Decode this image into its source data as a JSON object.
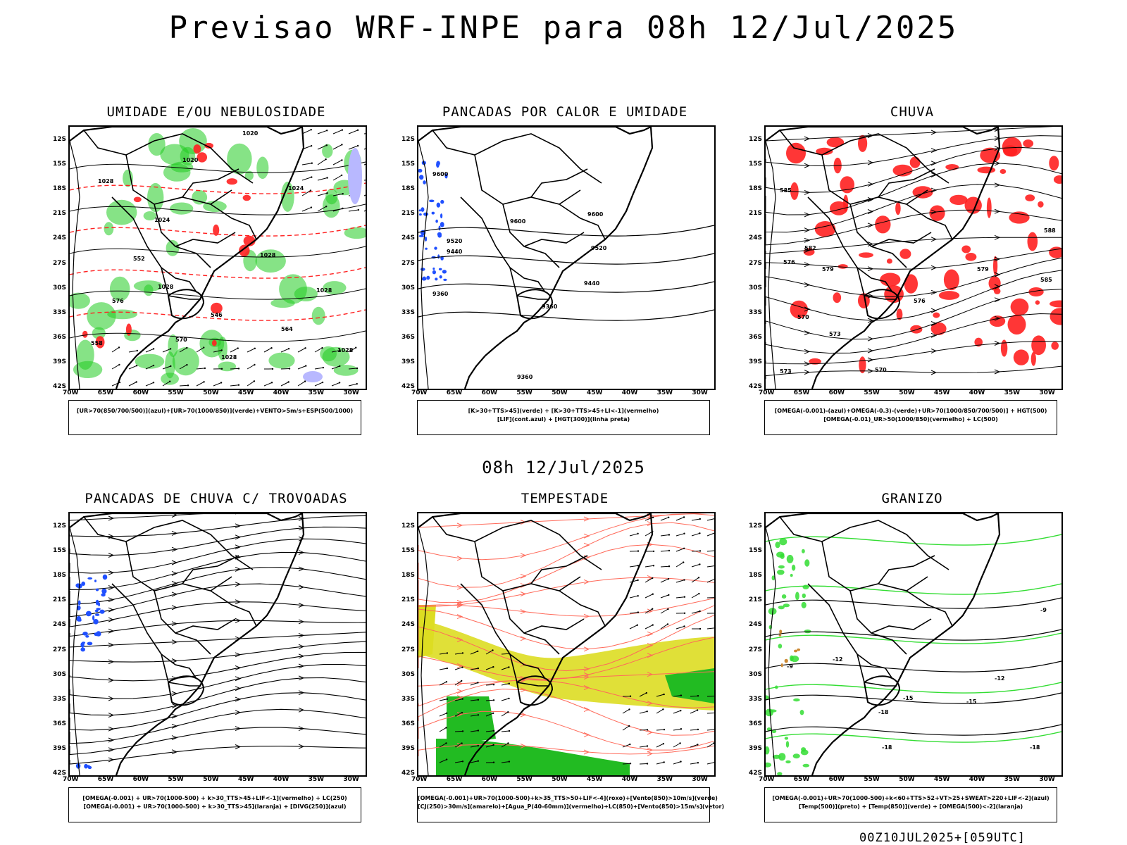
{
  "header": {
    "title": "Previsao WRF-INPE  para 08h 12/Jul/2025",
    "middle_title": "08h 12/Jul/2025",
    "footer_stamp": "00Z10JUL2025+[059UTC]"
  },
  "axes": {
    "lat_labels": [
      "12S",
      "15S",
      "18S",
      "21S",
      "24S",
      "27S",
      "30S",
      "33S",
      "36S",
      "39S",
      "42S"
    ],
    "lon_labels": [
      "70W",
      "65W",
      "60W",
      "55W",
      "50W",
      "45W",
      "40W",
      "35W",
      "30W"
    ]
  },
  "panels": [
    {
      "id": "umidade",
      "title": "UMIDADE E/OU NEBULOSIDADE",
      "legend": [
        "[UR>70(850/700/500)](azul)+[UR>70(1000/850)](verde)+VENTO>5m/s+ESP(500/1000)"
      ],
      "contour_labels": [
        "1020",
        "1020",
        "1024",
        "1028",
        "1024",
        "1028",
        "1028",
        "1028",
        "1028",
        "1028",
        "570",
        "576",
        "558",
        "564",
        "552",
        "546"
      ]
    },
    {
      "id": "pancadas-calor",
      "title": "PANCADAS POR CALOR E UMIDADE",
      "legend": [
        "[K>30+TTS>45](verde) + [K>30+TTS>45+LI<-1](vermelho)",
        "[LIF](cont.azul) + [HGT(300)](linha preta)"
      ],
      "contour_labels": [
        "9600",
        "9600",
        "9600",
        "9520",
        "9520",
        "9440",
        "9440",
        "9360",
        "9360",
        "9360"
      ]
    },
    {
      "id": "chuva",
      "title": "CHUVA",
      "legend": [
        "[OMEGA(-0.001)-(azul)+OMEGA(-0.3)-(verde)+UR>70(1000/850/700/500)] + HGT(500)",
        "[OMEGA(-0.01)_UR>50(1000/850)(vermelho) + LC(500)"
      ],
      "contour_labels": [
        "585",
        "582",
        "579",
        "576",
        "588",
        "585",
        "579",
        "576",
        "573",
        "570",
        "570",
        "573"
      ]
    },
    {
      "id": "pancadas-trovoadas",
      "title": "PANCADAS DE CHUVA C/ TROVOADAS",
      "legend": [
        "[OMEGA(-0.001) + UR>70(1000-500) + k>30_TTS>45+LIF<-1](vermelho) + LC(250)",
        "[OMEGA(-0.001) + UR>70(1000-500) + k>30_TTS>45](laranja) + [DIVG(250)](azul)"
      ],
      "contour_labels": []
    },
    {
      "id": "tempestade",
      "title": "TEMPESTADE",
      "legend": [
        "[OMEGA(-0.001)+UR>70(1000-500)+k>35_TTS>50+LIF<-4](roxo)+[Vento(850)>10m/s](verde)",
        "[CJ(250)>30m/s](amarelo)+[Agua_P(40-60mm)](vermelho)+LC(850)+[Vento(850)>15m/s](vetor)"
      ],
      "contour_labels": []
    },
    {
      "id": "granizo",
      "title": "GRANIZO",
      "legend": [
        "[OMEGA(-0.001)+UR>70(1000-500)+k<60+TTS>52+VT>25+SWEAT>220+LIF<-2](azul)",
        "[Temp(500)](preto) + [Temp(850)](verde) + [OMEGA(500)<-2](laranja)"
      ],
      "contour_labels": [
        "-9",
        "-9",
        "-12",
        "-12",
        "-15",
        "-15",
        "-18",
        "-18",
        "-18"
      ]
    }
  ]
}
